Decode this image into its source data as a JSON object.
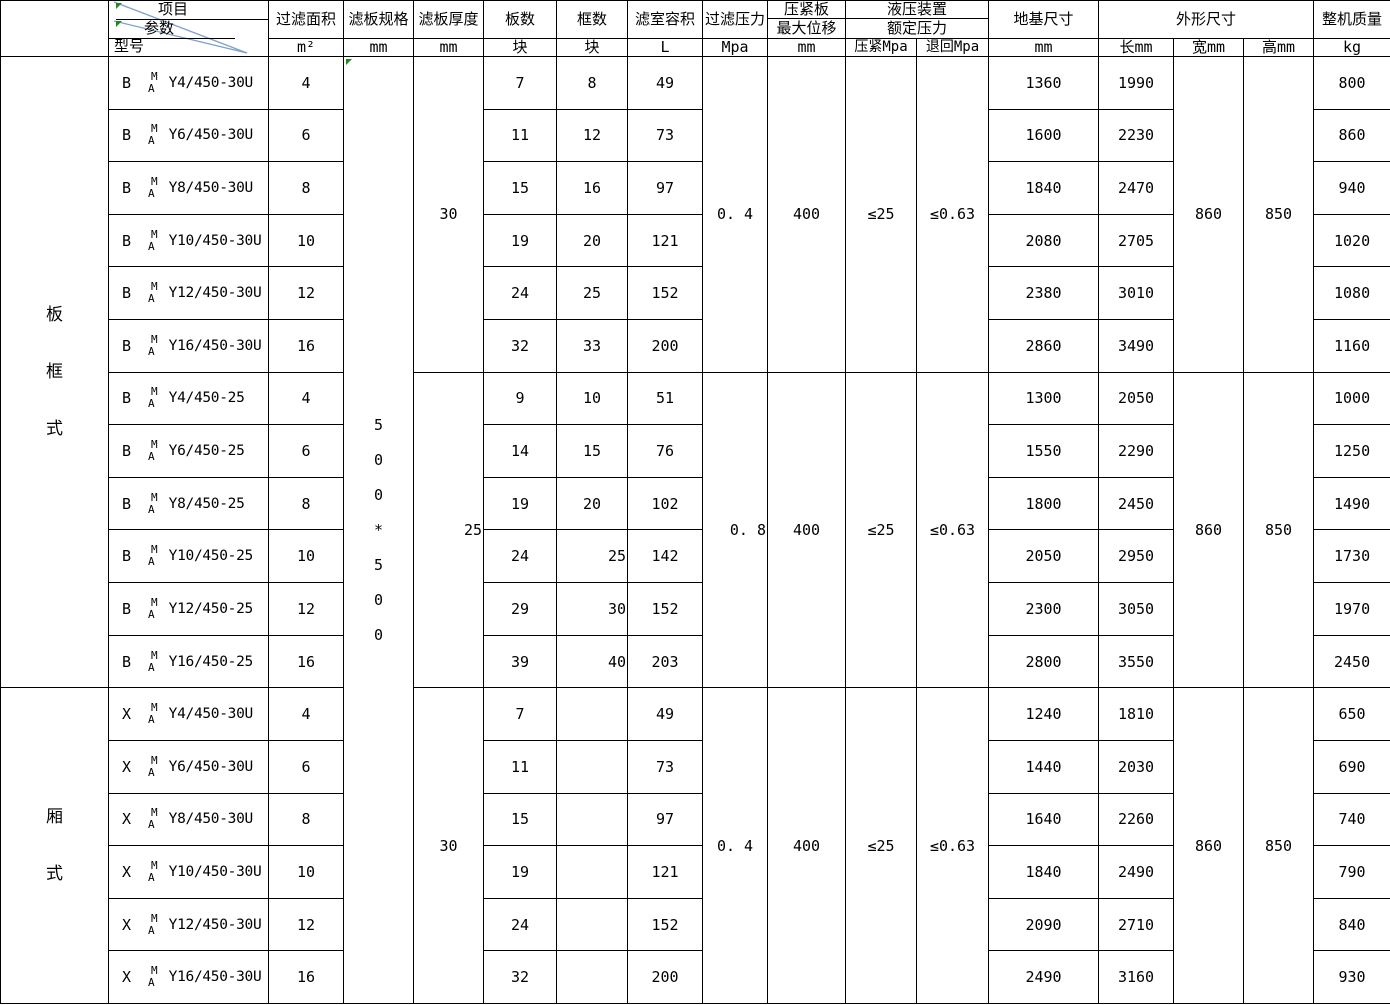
{
  "colors": {
    "diagonal_line_blue": "#7f9fcc",
    "marker_green": "#1e8a1e",
    "border_black": "#000000"
  },
  "header": {
    "diagonal": {
      "top_label": "项目",
      "middle_label": "参数",
      "bottom_label": "型号"
    },
    "area": {
      "label": "过滤面积",
      "unit": "m²"
    },
    "spec": {
      "label": "滤板规格",
      "unit": "mm"
    },
    "thickness": {
      "label": "滤板厚度",
      "unit": "mm"
    },
    "plates": {
      "label": "板数",
      "unit": "块"
    },
    "frames": {
      "label": "框数",
      "unit": "块"
    },
    "volume": {
      "label": "滤室容积",
      "unit": "L"
    },
    "pressure": {
      "label": "过滤压力",
      "unit": "Mpa"
    },
    "displacement": {
      "label_top": "压紧板",
      "label_bottom": "最大位移",
      "unit": "mm"
    },
    "hydraulic": {
      "label_top": "液压装置",
      "label_bottom": "额定压力",
      "press_unit": "压紧Mpa",
      "return_unit": "退回Mpa"
    },
    "foundation": {
      "label": "地基尺寸",
      "unit": "mm"
    },
    "dimensions": {
      "label": "外形尺寸",
      "length_unit": "长mm",
      "width_unit": "宽mm",
      "height_unit": "高mm"
    },
    "mass": {
      "label": "整机质量",
      "unit": "kg"
    }
  },
  "groups": [
    {
      "label": "板框式",
      "chars": [
        "板",
        "框",
        "式"
      ]
    },
    {
      "label": "厢式",
      "chars": [
        "厢",
        "式"
      ]
    }
  ],
  "model_stack": {
    "top": "M",
    "bottom": "A"
  },
  "spec_value": "500*500",
  "spec_chars": [
    "5",
    "0",
    "0",
    "*",
    "5",
    "0",
    "0"
  ],
  "sections": [
    {
      "thickness": "30",
      "pressure": "0. 4",
      "displacement": "400",
      "press_limit": "≤25",
      "return_limit": "≤0.63",
      "width": "860",
      "height": "850",
      "rows": [
        {
          "prefix": "B",
          "model": "Y4/450-30U",
          "area": "4",
          "plates": "7",
          "frames": "8",
          "volume": "49",
          "foundation": "1360",
          "length": "1990",
          "mass": "800"
        },
        {
          "prefix": "B",
          "model": "Y6/450-30U",
          "area": "6",
          "plates": "11",
          "frames": "12",
          "volume": "73",
          "foundation": "1600",
          "length": "2230",
          "mass": "860"
        },
        {
          "prefix": "B",
          "model": "Y8/450-30U",
          "area": "8",
          "plates": "15",
          "frames": "16",
          "volume": "97",
          "foundation": "1840",
          "length": "2470",
          "mass": "940"
        },
        {
          "prefix": "B",
          "model": "Y10/450-30U",
          "area": "10",
          "plates": "19",
          "frames": "20",
          "volume": "121",
          "foundation": "2080",
          "length": "2705",
          "mass": "1020"
        },
        {
          "prefix": "B",
          "model": "Y12/450-30U",
          "area": "12",
          "plates": "24",
          "frames": "25",
          "volume": "152",
          "foundation": "2380",
          "length": "3010",
          "mass": "1080"
        },
        {
          "prefix": "B",
          "model": "Y16/450-30U",
          "area": "16",
          "plates": "32",
          "frames": "33",
          "volume": "200",
          "foundation": "2860",
          "length": "3490",
          "mass": "1160"
        }
      ]
    },
    {
      "thickness": "25",
      "pressure": "0. 8",
      "displacement": "400",
      "press_limit": "≤25",
      "return_limit": "≤0.63",
      "width": "860",
      "height": "850",
      "rows": [
        {
          "prefix": "B",
          "model": "Y4/450-25",
          "area": "4",
          "plates": "9",
          "frames": "10",
          "volume": "51",
          "foundation": "1300",
          "length": "2050",
          "mass": "1000"
        },
        {
          "prefix": "B",
          "model": "Y6/450-25",
          "area": "6",
          "plates": "14",
          "frames": "15",
          "volume": "76",
          "foundation": "1550",
          "length": "2290",
          "mass": "1250"
        },
        {
          "prefix": "B",
          "model": "Y8/450-25",
          "area": "8",
          "plates": "19",
          "frames": "20",
          "volume": "102",
          "foundation": "1800",
          "length": "2450",
          "mass": "1490"
        },
        {
          "prefix": "B",
          "model": "Y10/450-25",
          "area": "10",
          "plates": "24",
          "frames": "25",
          "volume": "142",
          "foundation": "2050",
          "length": "2950",
          "mass": "1730"
        },
        {
          "prefix": "B",
          "model": "Y12/450-25",
          "area": "12",
          "plates": "29",
          "frames": "30",
          "volume": "152",
          "foundation": "2300",
          "length": "3050",
          "mass": "1970"
        },
        {
          "prefix": "B",
          "model": "Y16/450-25",
          "area": "16",
          "plates": "39",
          "frames": "40",
          "volume": "203",
          "foundation": "2800",
          "length": "3550",
          "mass": "2450"
        }
      ]
    },
    {
      "thickness": "30",
      "pressure": "0. 4",
      "displacement": "400",
      "press_limit": "≤25",
      "return_limit": "≤0.63",
      "width": "860",
      "height": "850",
      "rows": [
        {
          "prefix": "X",
          "model": "Y4/450-30U",
          "area": "4",
          "plates": "7",
          "frames": "",
          "volume": "49",
          "foundation": "1240",
          "length": "1810",
          "mass": "650"
        },
        {
          "prefix": "X",
          "model": "Y6/450-30U",
          "area": "6",
          "plates": "11",
          "frames": "",
          "volume": "73",
          "foundation": "1440",
          "length": "2030",
          "mass": "690"
        },
        {
          "prefix": "X",
          "model": "Y8/450-30U",
          "area": "8",
          "plates": "15",
          "frames": "",
          "volume": "97",
          "foundation": "1640",
          "length": "2260",
          "mass": "740"
        },
        {
          "prefix": "X",
          "model": "Y10/450-30U",
          "area": "10",
          "plates": "19",
          "frames": "",
          "volume": "121",
          "foundation": "1840",
          "length": "2490",
          "mass": "790"
        },
        {
          "prefix": "X",
          "model": "Y12/450-30U",
          "area": "12",
          "plates": "24",
          "frames": "",
          "volume": "152",
          "foundation": "2090",
          "length": "2710",
          "mass": "840"
        },
        {
          "prefix": "X",
          "model": "Y16/450-30U",
          "area": "16",
          "plates": "32",
          "frames": "",
          "volume": "200",
          "foundation": "2490",
          "length": "3160",
          "mass": "930"
        }
      ]
    }
  ]
}
